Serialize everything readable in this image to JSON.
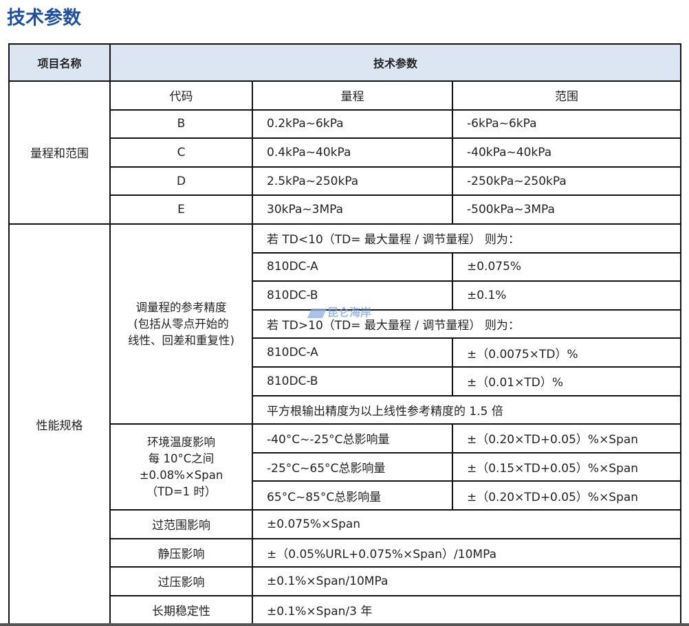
{
  "title": "技术参数",
  "header": {
    "item": "项目名称",
    "params": "技术参数"
  },
  "range": {
    "label": "量程和范围",
    "cols": [
      "代码",
      "量程",
      "范围"
    ],
    "rows": [
      [
        "B",
        "0.2kPa~6kPa",
        "-6kPa~6kPa"
      ],
      [
        "C",
        "0.4kPa~40kPa",
        "-40kPa~40kPa"
      ],
      [
        "D",
        "2.5kPa~250kPa",
        "-250kPa~250kPa"
      ],
      [
        "E",
        "30kPa~3MPa",
        "-500kPa~3MPa"
      ]
    ]
  },
  "perf": {
    "label": "性能规格",
    "accuracy": {
      "label": [
        "调量程的参考精度",
        "(包括从零点开始的",
        "线性、回差和重复性)"
      ],
      "td_lt": "若 TD<10（TD= 最大量程 / 调节量程） 则为：",
      "lt_rows": [
        [
          "810DC-A",
          "±0.075%"
        ],
        [
          "810DC-B",
          "±0.1%"
        ]
      ],
      "td_gt": "若 TD>10（TD= 最大量程 / 调节量程） 则为：",
      "gt_rows": [
        [
          "810DC-A",
          "±（0.0075×TD）%"
        ],
        [
          "810DC-B",
          "±（0.01×TD）%"
        ]
      ],
      "sqrt": "平方根输出精度为以上线性参考精度的 1.5 倍"
    },
    "temp": {
      "label": [
        "环境温度影响",
        "每 10°C之间",
        "±0.08%×Span",
        "（TD=1 时）"
      ],
      "rows": [
        [
          "-40°C~-25°C总影响量",
          "±（0.20×TD+0.05）%×Span"
        ],
        [
          "-25°C~65°C总影响量",
          "±（0.15×TD+0.05）%×Span"
        ],
        [
          "65°C~85°C总影响量",
          "±（0.20×TD+0.05）%×Span"
        ]
      ]
    },
    "others": [
      [
        "过范围影响",
        "±0.075%×Span"
      ],
      [
        "静压影响",
        "±（0.05%URL+0.075%×Span）/10MPa"
      ],
      [
        "过压影响",
        "±0.1%×Span/10MPa"
      ],
      [
        "长期稳定性",
        "±0.1%×Span/3 年"
      ]
    ]
  },
  "watermark": "昆仑海岸"
}
